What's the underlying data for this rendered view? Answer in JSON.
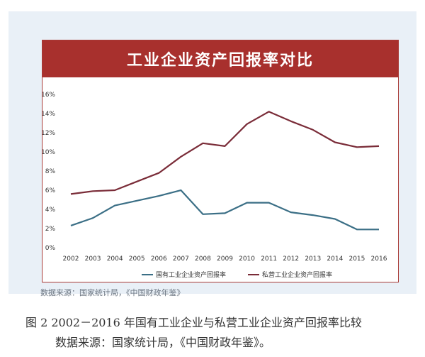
{
  "chart_data": {
    "type": "line",
    "title": "工业企业资产回报率对比",
    "categories": [
      "2002",
      "2003",
      "2004",
      "2005",
      "2006",
      "2007",
      "2008",
      "2009",
      "2010",
      "2011",
      "2012",
      "2013",
      "2014",
      "2015",
      "2016"
    ],
    "y_tick_labels": [
      "0%",
      "2%",
      "4%",
      "6%",
      "8%",
      "10%",
      "12%",
      "14%",
      "16%"
    ],
    "ylim": [
      0,
      16
    ],
    "grid": false,
    "legend_position": "bottom",
    "series": [
      {
        "name": "国有工业企业资产回报率",
        "color": "#3b6f86",
        "values": [
          2.3,
          3.1,
          4.4,
          4.9,
          5.4,
          6.0,
          3.5,
          3.6,
          4.7,
          4.7,
          3.7,
          3.4,
          3.0,
          1.9,
          1.9
        ]
      },
      {
        "name": "私营工业企业资产回报率",
        "color": "#7a2c38",
        "values": [
          5.6,
          5.9,
          6.0,
          6.9,
          7.8,
          9.5,
          10.9,
          10.6,
          12.9,
          14.2,
          13.2,
          12.3,
          11.0,
          10.5,
          10.6
        ]
      }
    ]
  },
  "source_inner": "数据来源：国家统计局，《中国财政年鉴》",
  "caption": {
    "line1": "图 2   2002－2016 年国有工业企业与私营工业企业资产回报率比较",
    "line2": "数据来源：国家统计局，《中国财政年鉴》。"
  },
  "colors": {
    "title_bar": "#a8302d",
    "frame": "#a83a36",
    "panel_bg": "#e9f0f7"
  }
}
